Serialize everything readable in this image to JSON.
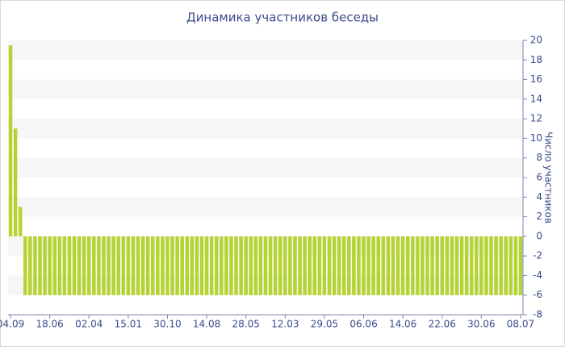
{
  "chart_data": {
    "type": "bar",
    "title": "Динамика участников беседы",
    "y_label": "Число участников",
    "categories": [
      "04.09",
      null,
      null,
      null,
      null,
      null,
      null,
      null,
      "18.06",
      null,
      null,
      null,
      null,
      null,
      null,
      null,
      "02.04",
      null,
      null,
      null,
      null,
      null,
      null,
      null,
      "15.01",
      null,
      null,
      null,
      null,
      null,
      null,
      null,
      "30.10",
      null,
      null,
      null,
      null,
      null,
      null,
      null,
      "14.08",
      null,
      null,
      null,
      null,
      null,
      null,
      null,
      "28.05",
      null,
      null,
      null,
      null,
      null,
      null,
      null,
      "12.03",
      null,
      null,
      null,
      null,
      null,
      null,
      null,
      "29.05",
      null,
      null,
      null,
      null,
      null,
      null,
      null,
      "06.06",
      null,
      null,
      null,
      null,
      null,
      null,
      null,
      "14.06",
      null,
      null,
      null,
      null,
      null,
      null,
      null,
      "22.06",
      null,
      null,
      null,
      null,
      null,
      null,
      null,
      "30.06",
      null,
      null,
      null,
      null,
      null,
      null,
      null,
      "08.07"
    ],
    "values": [
      19.5,
      11,
      3,
      -6,
      -6,
      -6,
      -6,
      -6,
      -6,
      -6,
      -6,
      -6,
      -6,
      -6,
      -6,
      -6,
      -6,
      -6,
      -6,
      -6,
      -6,
      -6,
      -6,
      -6,
      -6,
      -6,
      -6,
      -6,
      -6,
      -6,
      -6,
      -6,
      -6,
      -6,
      -6,
      -6,
      -6,
      -6,
      -6,
      -6,
      -6,
      -6,
      -6,
      -6,
      -6,
      -6,
      -6,
      -6,
      -6,
      -6,
      -6,
      -6,
      -6,
      -6,
      -6,
      -6,
      -6,
      -6,
      -6,
      -6,
      -6,
      -6,
      -6,
      -6,
      -6,
      -6,
      -6,
      -6,
      -6,
      -6,
      -6,
      -6,
      -6,
      -6,
      -6,
      -6,
      -6,
      -6,
      -6,
      -6,
      -6,
      -6,
      -6,
      -6,
      -6,
      -6,
      -6,
      -6,
      -6,
      -6,
      -6,
      -6,
      -6,
      -6,
      -6,
      -6,
      -6,
      -6,
      -6,
      -6,
      -6,
      -6,
      -6,
      -6,
      -6
    ],
    "color": "#b5d333",
    "ylim": [
      -8,
      20
    ],
    "yticks": [
      -8,
      -6,
      -4,
      -2,
      0,
      2,
      4,
      6,
      8,
      10,
      12,
      14,
      16,
      18,
      20
    ],
    "y_axis_side": "right",
    "grid": "bands"
  }
}
